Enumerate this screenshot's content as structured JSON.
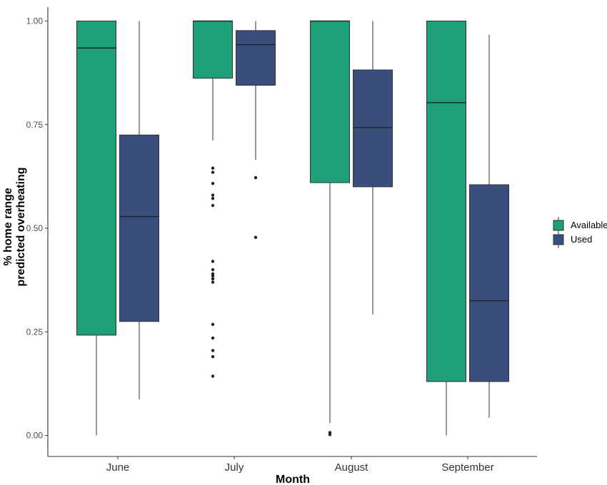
{
  "chart_data": {
    "type": "boxplot",
    "title": "",
    "xlabel": "Month",
    "ylabel_lines": [
      "% home range",
      "predicted overheating"
    ],
    "categories": [
      "June",
      "July",
      "August",
      "September"
    ],
    "ylim": [
      0,
      1
    ],
    "yticks": [
      0.0,
      0.25,
      0.5,
      0.75,
      1.0
    ],
    "ytick_labels": [
      "0.00",
      "0.25",
      "0.50",
      "0.75",
      "1.00"
    ],
    "grid": false,
    "legend_position": "right",
    "series": [
      {
        "name": "Available",
        "color": "#1f9e7a",
        "boxes": [
          {
            "category": "June",
            "q1": 0.242,
            "median": 0.935,
            "q3": 1.0,
            "whisker_low": 0.0,
            "whisker_high": 1.0,
            "outliers": []
          },
          {
            "category": "July",
            "q1": 0.862,
            "median": 1.0,
            "q3": 1.0,
            "whisker_low": 0.712,
            "whisker_high": 1.0,
            "outliers": [
              0.645,
              0.635,
              0.608,
              0.58,
              0.572,
              0.555,
              0.42,
              0.4,
              0.39,
              0.385,
              0.378,
              0.37,
              0.268,
              0.235,
              0.205,
              0.19,
              0.143
            ]
          },
          {
            "category": "August",
            "q1": 0.61,
            "median": 1.0,
            "q3": 1.0,
            "whisker_low": 0.03,
            "whisker_high": 1.0,
            "outliers": [
              0.007,
              0.002
            ]
          },
          {
            "category": "September",
            "q1": 0.13,
            "median": 0.803,
            "q3": 1.0,
            "whisker_low": 0.0,
            "whisker_high": 1.0,
            "outliers": []
          }
        ]
      },
      {
        "name": "Used",
        "color": "#3a4e7e",
        "boxes": [
          {
            "category": "June",
            "q1": 0.275,
            "median": 0.528,
            "q3": 0.725,
            "whisker_low": 0.087,
            "whisker_high": 1.0,
            "outliers": []
          },
          {
            "category": "July",
            "q1": 0.845,
            "median": 0.943,
            "q3": 0.977,
            "whisker_low": 0.665,
            "whisker_high": 1.0,
            "outliers": [
              0.622,
              0.478
            ]
          },
          {
            "category": "August",
            "q1": 0.6,
            "median": 0.743,
            "q3": 0.882,
            "whisker_low": 0.292,
            "whisker_high": 1.0,
            "outliers": []
          },
          {
            "category": "September",
            "q1": 0.13,
            "median": 0.325,
            "q3": 0.605,
            "whisker_low": 0.043,
            "whisker_high": 0.967,
            "outliers": []
          }
        ]
      }
    ]
  }
}
